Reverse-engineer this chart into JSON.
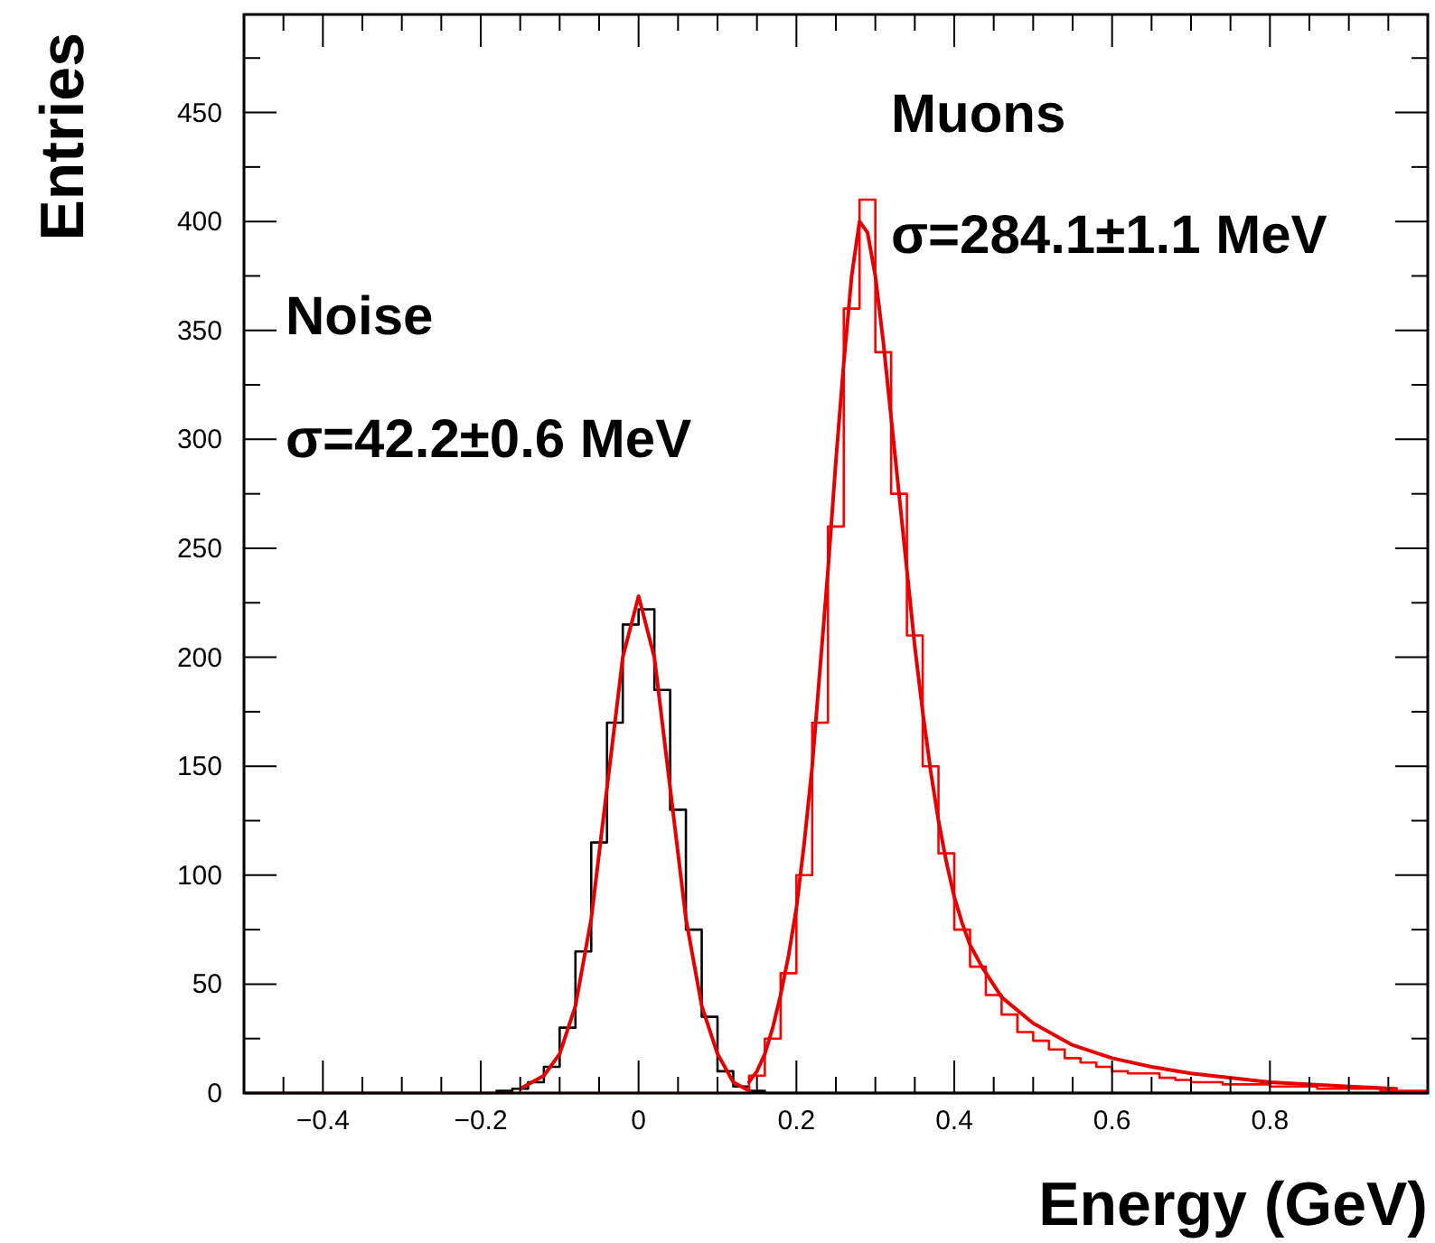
{
  "chart_data": {
    "type": "histogram",
    "xlabel": "Energy (GeV)",
    "ylabel": "Entries",
    "xlim": [
      -0.5,
      1.0
    ],
    "ylim": [
      0,
      495
    ],
    "xticks": [
      {
        "value": -0.45,
        "label": null
      },
      -0.4,
      {
        "value": -0.35,
        "label": null
      },
      {
        "value": -0.3,
        "label": null
      },
      {
        "value": -0.25,
        "label": null
      },
      -0.2,
      {
        "value": -0.15,
        "label": null
      },
      {
        "value": -0.1,
        "label": null
      },
      {
        "value": -0.05,
        "label": null
      },
      0,
      {
        "value": 0.05,
        "label": null
      },
      {
        "value": 0.1,
        "label": null
      },
      {
        "value": 0.15,
        "label": null
      },
      0.2,
      {
        "value": 0.25,
        "label": null
      },
      {
        "value": 0.3,
        "label": null
      },
      {
        "value": 0.35,
        "label": null
      },
      0.4,
      {
        "value": 0.45,
        "label": null
      },
      {
        "value": 0.5,
        "label": null
      },
      {
        "value": 0.55,
        "label": null
      },
      0.6,
      {
        "value": 0.65,
        "label": null
      },
      {
        "value": 0.7,
        "label": null
      },
      {
        "value": 0.75,
        "label": null
      },
      0.8,
      {
        "value": 0.85,
        "label": null
      },
      {
        "value": 0.9,
        "label": null
      },
      {
        "value": 0.95,
        "label": null
      }
    ],
    "yticks": [
      0,
      {
        "value": 25,
        "label": null
      },
      50,
      {
        "value": 75,
        "label": null
      },
      100,
      {
        "value": 125,
        "label": null
      },
      150,
      {
        "value": 175,
        "label": null
      },
      200,
      {
        "value": 225,
        "label": null
      },
      250,
      {
        "value": 275,
        "label": null
      },
      300,
      {
        "value": 325,
        "label": null
      },
      350,
      {
        "value": 375,
        "label": null
      },
      400,
      {
        "value": 425,
        "label": null
      },
      450,
      {
        "value": 475,
        "label": null
      }
    ],
    "grid": false,
    "bins": [
      -0.5,
      -0.48,
      -0.46,
      -0.44,
      -0.42,
      -0.4,
      -0.38,
      -0.36,
      -0.34,
      -0.32,
      -0.3,
      -0.28,
      -0.26,
      -0.24,
      -0.22,
      -0.2,
      -0.18,
      -0.16,
      -0.14,
      -0.12,
      -0.1,
      -0.08,
      -0.06,
      -0.04,
      -0.02,
      0,
      0.02,
      0.04,
      0.06,
      0.08,
      0.1,
      0.12,
      0.14,
      0.16,
      0.18,
      0.2,
      0.22,
      0.24,
      0.26,
      0.28,
      0.3,
      0.32,
      0.34,
      0.36,
      0.38,
      0.4,
      0.42,
      0.44,
      0.46,
      0.48,
      0.5,
      0.52,
      0.54,
      0.56,
      0.58,
      0.6,
      0.62,
      0.64,
      0.66,
      0.68,
      0.7,
      0.72,
      0.74,
      0.76,
      0.78,
      0.8,
      0.82,
      0.84,
      0.86,
      0.88,
      0.9,
      0.92,
      0.94,
      0.96,
      0.98,
      1.0
    ],
    "series": [
      {
        "color": "#000000",
        "values": [
          0,
          0,
          0,
          0,
          0,
          0,
          0,
          0,
          0,
          0,
          0,
          0,
          0,
          0,
          0,
          0,
          1,
          2,
          5,
          12,
          30,
          65,
          115,
          170,
          215,
          222,
          185,
          130,
          75,
          35,
          10,
          3,
          1,
          0,
          0,
          0,
          0,
          0,
          0,
          0,
          0,
          0,
          0,
          0,
          0,
          0,
          0,
          0,
          0,
          0,
          0,
          0,
          0,
          0,
          0,
          0,
          0,
          0,
          0,
          0,
          0,
          0,
          0,
          0,
          0,
          0,
          0,
          0,
          0,
          0,
          0,
          0,
          0,
          0,
          0
        ]
      },
      {
        "color": "#ff0000",
        "values": [
          0,
          0,
          0,
          0,
          0,
          0,
          0,
          0,
          0,
          0,
          0,
          0,
          0,
          0,
          0,
          0,
          0,
          0,
          0,
          0,
          0,
          0,
          0,
          0,
          0,
          0,
          0,
          0,
          0,
          0,
          0,
          0,
          8,
          25,
          55,
          100,
          170,
          260,
          360,
          410,
          340,
          275,
          210,
          150,
          110,
          75,
          58,
          45,
          36,
          28,
          24,
          20,
          16,
          14,
          12,
          10,
          9,
          9,
          7,
          6,
          5,
          5,
          4,
          4,
          4,
          3,
          3,
          3,
          2,
          2,
          2,
          2,
          1,
          1,
          1
        ]
      },
      {
        "type": "line",
        "color": "#e60000",
        "x": [
          -0.15,
          -0.12,
          -0.1,
          -0.08,
          -0.06,
          -0.04,
          -0.02,
          0,
          0.02,
          0.04,
          0.06,
          0.08,
          0.1,
          0.12,
          0.14
        ],
        "values": [
          2,
          8,
          18,
          40,
          80,
          140,
          200,
          228,
          200,
          140,
          80,
          40,
          18,
          5,
          1
        ]
      },
      {
        "type": "line",
        "color": "#e60000",
        "x": [
          0.14,
          0.15,
          0.16,
          0.17,
          0.18,
          0.19,
          0.2,
          0.21,
          0.22,
          0.23,
          0.24,
          0.25,
          0.26,
          0.27,
          0.28,
          0.29,
          0.3,
          0.31,
          0.32,
          0.33,
          0.34,
          0.35,
          0.36,
          0.37,
          0.38,
          0.39,
          0.4,
          0.41,
          0.42,
          0.435,
          0.46,
          0.5,
          0.55,
          0.6,
          0.65,
          0.7,
          0.8,
          0.9,
          0.96
        ],
        "values": [
          5,
          10,
          18,
          30,
          45,
          63,
          85,
          115,
          150,
          195,
          240,
          290,
          335,
          375,
          400,
          395,
          375,
          345,
          310,
          275,
          240,
          205,
          175,
          148,
          125,
          106,
          90,
          78,
          68,
          58,
          44,
          32,
          22,
          16,
          12,
          9,
          5,
          3,
          2
        ]
      }
    ],
    "annotations": [
      "Noise",
      "σ=42.2±0.6 MeV",
      "Muons",
      "σ=284.1±1.1 MeV"
    ]
  }
}
